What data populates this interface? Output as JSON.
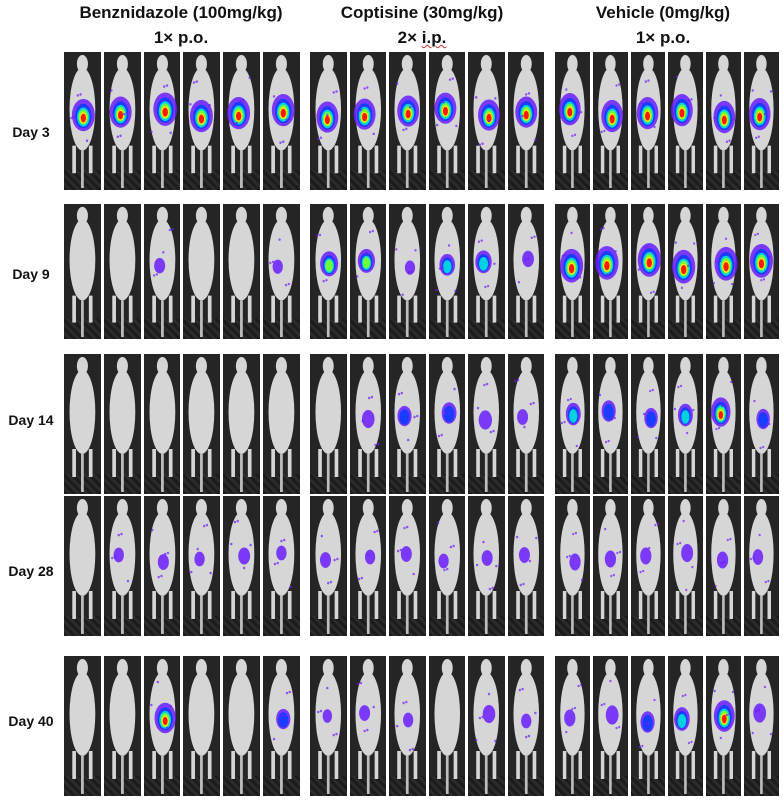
{
  "groups": [
    {
      "name": "Benznidazole (100mg/kg)",
      "regimen_times": "1×",
      "regimen_route": "p.o."
    },
    {
      "name": "Coptisine (30mg/kg)",
      "regimen_times": "2×",
      "regimen_route": "i.p."
    },
    {
      "name": "Vehicle (0mg/kg)",
      "regimen_times": "1×",
      "regimen_route": "p.o."
    }
  ],
  "timepoints": [
    {
      "label": "Day 3"
    },
    {
      "label": "Day 9"
    },
    {
      "label": "Day 14"
    },
    {
      "label": "Day 28"
    },
    {
      "label": "Day 40"
    }
  ],
  "mice_per_group": 6,
  "colors": {
    "background": "#252525",
    "body": "#d6d6d6",
    "signal_low": "#6a1cff",
    "signal_mid": "#00d0e0",
    "signal_high": "#ff1a00"
  },
  "signal_levels": [
    [
      [
        0.9,
        0.85,
        0.95,
        0.9,
        0.9,
        0.9
      ],
      [
        0.85,
        0.85,
        0.85,
        0.85,
        0.85,
        0.85
      ],
      [
        0.9,
        0.9,
        0.9,
        0.9,
        0.9,
        0.9
      ]
    ],
    [
      [
        0.0,
        0.0,
        0.15,
        0.0,
        0.0,
        0.1
      ],
      [
        0.6,
        0.55,
        0.1,
        0.45,
        0.5,
        0.2
      ],
      [
        1.0,
        1.0,
        1.0,
        1.0,
        1.0,
        1.0
      ]
    ],
    [
      [
        0.0,
        0.0,
        0.0,
        0.0,
        0.0,
        0.0
      ],
      [
        0.0,
        0.25,
        0.35,
        0.4,
        0.3,
        0.15
      ],
      [
        0.45,
        0.4,
        0.35,
        0.45,
        0.75,
        0.35
      ]
    ],
    [
      [
        0.0,
        0.1,
        0.15,
        0.1,
        0.2,
        0.1
      ],
      [
        0.15,
        0.1,
        0.15,
        0.1,
        0.15,
        0.15
      ],
      [
        0.2,
        0.2,
        0.2,
        0.25,
        0.2,
        0.15
      ]
    ],
    [
      [
        0.0,
        0.0,
        0.8,
        0.0,
        0.0,
        0.35
      ],
      [
        0.05,
        0.15,
        0.1,
        0.0,
        0.25,
        0.1
      ],
      [
        0.2,
        0.3,
        0.4,
        0.5,
        0.85,
        0.3
      ]
    ]
  ]
}
